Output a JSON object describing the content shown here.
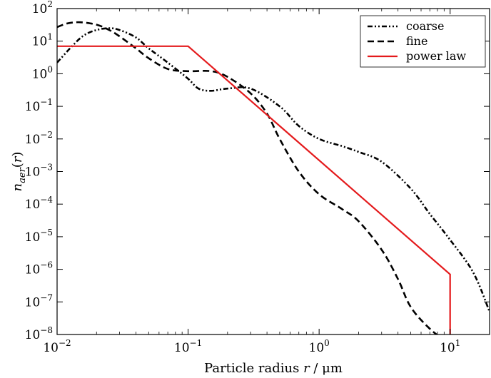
{
  "chart_data": {
    "type": "line",
    "xscale": "log",
    "yscale": "log",
    "xlim": [
      0.01,
      20
    ],
    "ylim": [
      1e-08,
      100
    ],
    "xlabel": {
      "prefix": "Particle radius ",
      "var": "r",
      "suffix": " / μm"
    },
    "ylabel": {
      "var": "n",
      "sub": "aer",
      "suffix": "(r)"
    },
    "x_ticks": [
      {
        "value": 0.01,
        "base": "10",
        "exp": "−2"
      },
      {
        "value": 0.1,
        "base": "10",
        "exp": "−1"
      },
      {
        "value": 1,
        "base": "10",
        "exp": "0"
      },
      {
        "value": 10,
        "base": "10",
        "exp": "1"
      }
    ],
    "y_ticks": [
      {
        "value": 1e-08,
        "base": "10",
        "exp": "−8"
      },
      {
        "value": 1e-07,
        "base": "10",
        "exp": "−7"
      },
      {
        "value": 1e-06,
        "base": "10",
        "exp": "−6"
      },
      {
        "value": 1e-05,
        "base": "10",
        "exp": "−5"
      },
      {
        "value": 0.0001,
        "base": "10",
        "exp": "−4"
      },
      {
        "value": 0.001,
        "base": "10",
        "exp": "−3"
      },
      {
        "value": 0.01,
        "base": "10",
        "exp": "−2"
      },
      {
        "value": 0.1,
        "base": "10",
        "exp": "−1"
      },
      {
        "value": 1,
        "base": "10",
        "exp": "0"
      },
      {
        "value": 10,
        "base": "10",
        "exp": "1"
      },
      {
        "value": 100,
        "base": "10",
        "exp": "2"
      }
    ],
    "grid": false,
    "legend_position": "top-right",
    "series": [
      {
        "name": "coarse",
        "color": "#000000",
        "style": "dash-dot-dot",
        "x": [
          0.01,
          0.013,
          0.016,
          0.02,
          0.025,
          0.03,
          0.04,
          0.05,
          0.07,
          0.1,
          0.12,
          0.15,
          0.2,
          0.3,
          0.5,
          0.7,
          1.0,
          1.5,
          2.0,
          3.0,
          5.0,
          7.0,
          10.0,
          15.0,
          20.0
        ],
        "y": [
          2.2,
          7,
          15,
          22,
          25,
          22,
          13,
          6,
          2.2,
          0.7,
          0.35,
          0.3,
          0.35,
          0.35,
          0.1,
          0.025,
          0.01,
          0.006,
          0.004,
          0.002,
          0.0003,
          5e-05,
          8e-06,
          8e-07,
          5e-08
        ]
      },
      {
        "name": "fine",
        "color": "#000000",
        "style": "dashed",
        "x": [
          0.01,
          0.012,
          0.015,
          0.02,
          0.025,
          0.03,
          0.04,
          0.05,
          0.07,
          0.1,
          0.15,
          0.2,
          0.3,
          0.4,
          0.5,
          0.7,
          1.0,
          1.5,
          2.0,
          3.0,
          4.0,
          5.0,
          7.0,
          10.0
        ],
        "y": [
          27,
          35,
          38,
          32,
          22,
          14,
          6,
          3,
          1.4,
          1.2,
          1.2,
          0.8,
          0.25,
          0.06,
          0.01,
          0.001,
          0.0002,
          7e-05,
          3e-05,
          4e-06,
          5e-07,
          7e-08,
          1.5e-08,
          5e-09
        ]
      },
      {
        "name": "power law",
        "color": "#e41a1c",
        "style": "solid",
        "x": [
          0.01,
          0.1,
          10.0,
          10.0
        ],
        "y": [
          7,
          7,
          7e-07,
          1e-08
        ]
      }
    ]
  }
}
